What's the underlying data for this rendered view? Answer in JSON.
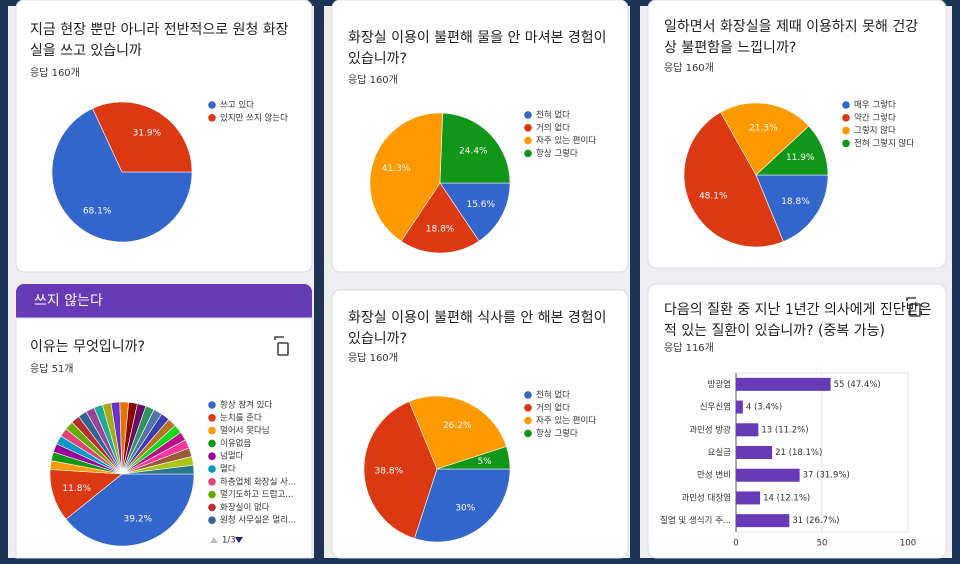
{
  "section": {
    "title": "쓰지 않는다"
  },
  "chart_data": [
    {
      "type": "pie",
      "title_lines": [
        "지금 현장 뿐만 아니라 전반적으로 원청 화장",
        "실을 쓰고 있습니까"
      ],
      "subtitle": "응답 160개",
      "categories": [
        "쓰고 있다",
        "있지만 쓰지 않는다"
      ],
      "values": [
        68.1,
        31.9
      ],
      "value_labels": [
        "68.1%",
        "31.9%"
      ],
      "colors": [
        "#3366cc",
        "#dc3912"
      ]
    },
    {
      "type": "pie",
      "title_lines": [
        "이유는 무엇입니까?"
      ],
      "subtitle": "응답 51개",
      "legend_page": "1/3",
      "categories": [
        "항상 잠겨 있다",
        "눈치를 준다",
        "멀어서 못다님",
        "이유없음",
        "넘멀다",
        "멀다",
        "하층업체 화장실 사...",
        "멀기도하고 드럽고...",
        "화장실이 없다",
        "원청 사무실은 멀리...",
        null,
        null,
        null,
        null,
        null,
        null,
        null,
        null,
        null,
        null,
        null,
        null,
        null,
        null,
        null,
        null,
        null
      ],
      "values": [
        39.2,
        11.8,
        1.96,
        1.96,
        1.96,
        1.96,
        1.96,
        1.96,
        1.96,
        1.96,
        1.96,
        1.96,
        1.96,
        1.96,
        1.96,
        1.96,
        1.96,
        1.96,
        1.96,
        1.96,
        1.96,
        1.96,
        1.96,
        1.96,
        1.96,
        1.96,
        1.96
      ],
      "value_labels": [
        "39.2%",
        "11.8%",
        null,
        null,
        null,
        null,
        null,
        null,
        null,
        null,
        null,
        null,
        null,
        null,
        null,
        null,
        null,
        null,
        null,
        null,
        null,
        null,
        null,
        null,
        null,
        null,
        null
      ],
      "colors": [
        "#3366cc",
        "#dc3912",
        "#ff9900",
        "#109618",
        "#990099",
        "#0099c6",
        "#dd4477",
        "#66aa00",
        "#b82e2e",
        "#316395",
        "#994499",
        "#22aa99",
        "#aaaa11",
        "#6633cc",
        "#e67300",
        "#8b0707",
        "#651067",
        "#329262",
        "#5574a6",
        "#3b3eac",
        "#b77322",
        "#16d620",
        "#b91383",
        "#f4359e",
        "#9c5935",
        "#a9c413",
        "#2a778d"
      ]
    },
    {
      "type": "pie",
      "title_lines": [
        "화장실 이용이 불편해 물을 안 마셔본 경험이",
        "있습니까?"
      ],
      "subtitle": "응답 160개",
      "categories": [
        "전혀 없다",
        "거의 없다",
        "자주 있는 편이다",
        "항상 그렇다"
      ],
      "values": [
        15.6,
        18.8,
        41.3,
        24.4
      ],
      "value_labels": [
        "15.6%",
        "18.8%",
        "41.3%",
        "24.4%"
      ],
      "colors": [
        "#3366cc",
        "#dc3912",
        "#ff9900",
        "#109618"
      ]
    },
    {
      "type": "pie",
      "title_lines": [
        "화장실 이용이 불편해 식사를 안 해본 경험이",
        "있습니까?"
      ],
      "subtitle": "응답 160개",
      "categories": [
        "전혀 없다",
        "거의 없다",
        "자주 있는 편이다",
        "항상 그렇다"
      ],
      "values": [
        30,
        38.8,
        26.2,
        5
      ],
      "value_labels": [
        "30%",
        "38.8%",
        "26.2%",
        "5%"
      ],
      "colors": [
        "#3366cc",
        "#dc3912",
        "#ff9900",
        "#109618"
      ]
    },
    {
      "type": "pie",
      "title_lines": [
        "일하면서 화장실을 제때 이용하지 못해 건강",
        "상 불편함을 느낍니까?"
      ],
      "subtitle": "응답 160개",
      "categories": [
        "매우 그렇다",
        "약간 그렇다",
        "그렇지 않다",
        "전혀 그렇지 않다"
      ],
      "values": [
        18.8,
        48.1,
        21.3,
        11.9
      ],
      "value_labels": [
        "18.8%",
        "48.1%",
        "21.3%",
        "11.9%"
      ],
      "colors": [
        "#3366cc",
        "#dc3912",
        "#ff9900",
        "#109618"
      ]
    },
    {
      "type": "bar",
      "title_lines": [
        "다음의 질환 중 지난 1년간 의사에게 진단받은",
        "적 있는 질환이 있습니까? (중복 가능)"
      ],
      "subtitle": "응답 116개",
      "categories": [
        "방광염",
        "신우신염",
        "과민성 방광",
        "요실금",
        "만성 변비",
        "과민성 대장염",
        "질염 및 생식기 주..."
      ],
      "values": [
        55,
        4,
        13,
        21,
        37,
        14,
        31
      ],
      "value_labels": [
        "55 (47.4%)",
        "4 (3.4%)",
        "13 (11.2%)",
        "21 (18.1%)",
        "37 (31.9%)",
        "14 (12.1%)",
        "31 (26.7%)"
      ],
      "color": "#673ab7",
      "xlim": [
        0,
        100
      ],
      "xticks": [
        0,
        50,
        100
      ],
      "grid": true
    }
  ]
}
